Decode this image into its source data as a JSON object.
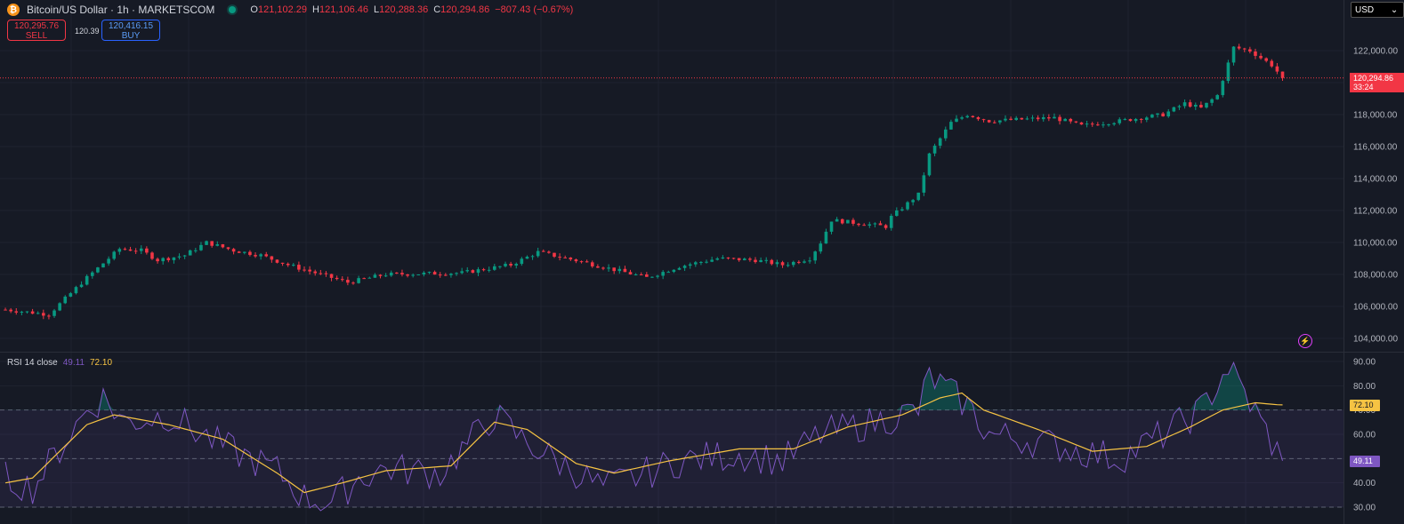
{
  "header": {
    "symbol_title": "Bitcoin/US Dollar · 1h · MARKETSCOM",
    "coin_icon": "bitcoin-icon",
    "ohlc": [
      {
        "key": "O",
        "value": "121,102.29"
      },
      {
        "key": "H",
        "value": "121,106.46"
      },
      {
        "key": "L",
        "value": "120,288.36"
      },
      {
        "key": "C",
        "value": "120,294.86"
      },
      {
        "key": "",
        "value": "−807.43 (−0.67%)"
      }
    ]
  },
  "trade": {
    "sell_price": "120,295.76",
    "sell_label": "SELL",
    "spread": "120.39",
    "buy_price": "120,416.15",
    "buy_label": "BUY"
  },
  "currency": "USD",
  "price_label": {
    "price": "120,294.86",
    "countdown": "33:24"
  },
  "rsi_legend": {
    "label": "RSI 14 close",
    "rsi": "49.11",
    "ma": "72.10"
  },
  "colors": {
    "up": "#089981",
    "down": "#f23645",
    "rsi": "#7e57c2",
    "rsi_ma": "#f6c343",
    "background": "#161a25"
  },
  "chart_data": [
    {
      "type": "candlestick",
      "title": "Bitcoin/US Dollar · 1h · MARKETSCOM",
      "y_ticks": [
        104000,
        106000,
        108000,
        110000,
        112000,
        114000,
        116000,
        118000,
        120000,
        122000
      ],
      "y_tick_labels": [
        "104,000.00",
        "106,000.00",
        "108,000.00",
        "110,000.00",
        "112,000.00",
        "114,000.00",
        "116,000.00",
        "118,000.00",
        "120,000.00",
        "122,000.00"
      ],
      "ylim": [
        103500,
        123500
      ],
      "grid": true,
      "candle_count": 240,
      "close_path": [
        [
          0,
          105800
        ],
        [
          8,
          105500
        ],
        [
          15,
          107800
        ],
        [
          21,
          109600
        ],
        [
          25,
          109500
        ],
        [
          28,
          108900
        ],
        [
          33,
          109200
        ],
        [
          37,
          110000
        ],
        [
          42,
          109500
        ],
        [
          47,
          109200
        ],
        [
          52,
          108600
        ],
        [
          58,
          108000
        ],
        [
          63,
          107500
        ],
        [
          70,
          108000
        ],
        [
          84,
          108100
        ],
        [
          93,
          108600
        ],
        [
          98,
          109400
        ],
        [
          106,
          108800
        ],
        [
          118,
          107800
        ],
        [
          124,
          108500
        ],
        [
          131,
          109000
        ],
        [
          138,
          108900
        ],
        [
          143,
          108600
        ],
        [
          148,
          109000
        ],
        [
          150,
          110000
        ],
        [
          152,
          111400
        ],
        [
          162,
          111000
        ],
        [
          163,
          111600
        ],
        [
          168,
          113000
        ],
        [
          170,
          115500
        ],
        [
          174,
          117500
        ],
        [
          177,
          118000
        ],
        [
          181,
          117600
        ],
        [
          193,
          117800
        ],
        [
          198,
          117300
        ],
        [
          205,
          117600
        ],
        [
          213,
          118000
        ],
        [
          217,
          118700
        ],
        [
          220,
          118400
        ],
        [
          223,
          119200
        ],
        [
          226,
          122200
        ],
        [
          229,
          122000
        ],
        [
          233,
          121100
        ],
        [
          235,
          120295
        ]
      ],
      "last_price": 120294.86
    },
    {
      "type": "line",
      "title": "RSI 14 close",
      "y_ticks": [
        30,
        40,
        50,
        60,
        70,
        80,
        90
      ],
      "y_tick_labels": [
        "30.00",
        "40.00",
        "50.00",
        "60.00",
        "70.00",
        "80.00",
        "90.00"
      ],
      "ylim": [
        28,
        93
      ],
      "bands": {
        "upper": 70,
        "lower": 30,
        "middle": 50
      },
      "series": [
        {
          "name": "RSI",
          "points": [
            [
              0,
              42
            ],
            [
              5,
              38
            ],
            [
              15,
              70
            ],
            [
              18,
              75
            ],
            [
              22,
              65
            ],
            [
              30,
              68
            ],
            [
              40,
              55
            ],
            [
              50,
              45
            ],
            [
              55,
              34
            ],
            [
              60,
              32
            ],
            [
              65,
              42
            ],
            [
              70,
              46
            ],
            [
              80,
              44
            ],
            [
              90,
              68
            ],
            [
              95,
              58
            ],
            [
              100,
              51
            ],
            [
              110,
              38
            ],
            [
              118,
              44
            ],
            [
              124,
              49
            ],
            [
              135,
              52
            ],
            [
              143,
              49
            ],
            [
              150,
              60
            ],
            [
              160,
              65
            ],
            [
              168,
              70
            ],
            [
              170,
              84
            ],
            [
              174,
              77
            ],
            [
              177,
              72
            ],
            [
              181,
              60
            ],
            [
              190,
              57
            ],
            [
              198,
              53
            ],
            [
              205,
              50
            ],
            [
              213,
              60
            ],
            [
              220,
              70
            ],
            [
              225,
              88
            ],
            [
              229,
              73
            ],
            [
              235,
              49
            ]
          ],
          "last_value": 49.11
        },
        {
          "name": "RSI-based MA",
          "points": [
            [
              0,
              40
            ],
            [
              5,
              42
            ],
            [
              15,
              64
            ],
            [
              20,
              68
            ],
            [
              30,
              64
            ],
            [
              40,
              58
            ],
            [
              50,
              44
            ],
            [
              55,
              36
            ],
            [
              62,
              40
            ],
            [
              70,
              45
            ],
            [
              82,
              47
            ],
            [
              90,
              65
            ],
            [
              96,
              62
            ],
            [
              105,
              48
            ],
            [
              112,
              44
            ],
            [
              122,
              49
            ],
            [
              135,
              54
            ],
            [
              145,
              54
            ],
            [
              155,
              63
            ],
            [
              165,
              68
            ],
            [
              172,
              75
            ],
            [
              176,
              77
            ],
            [
              180,
              70
            ],
            [
              190,
              62
            ],
            [
              200,
              53
            ],
            [
              210,
              55
            ],
            [
              218,
              63
            ],
            [
              224,
              70
            ],
            [
              230,
              73
            ],
            [
              235,
              72
            ]
          ],
          "last_value": 72.1
        }
      ]
    }
  ]
}
